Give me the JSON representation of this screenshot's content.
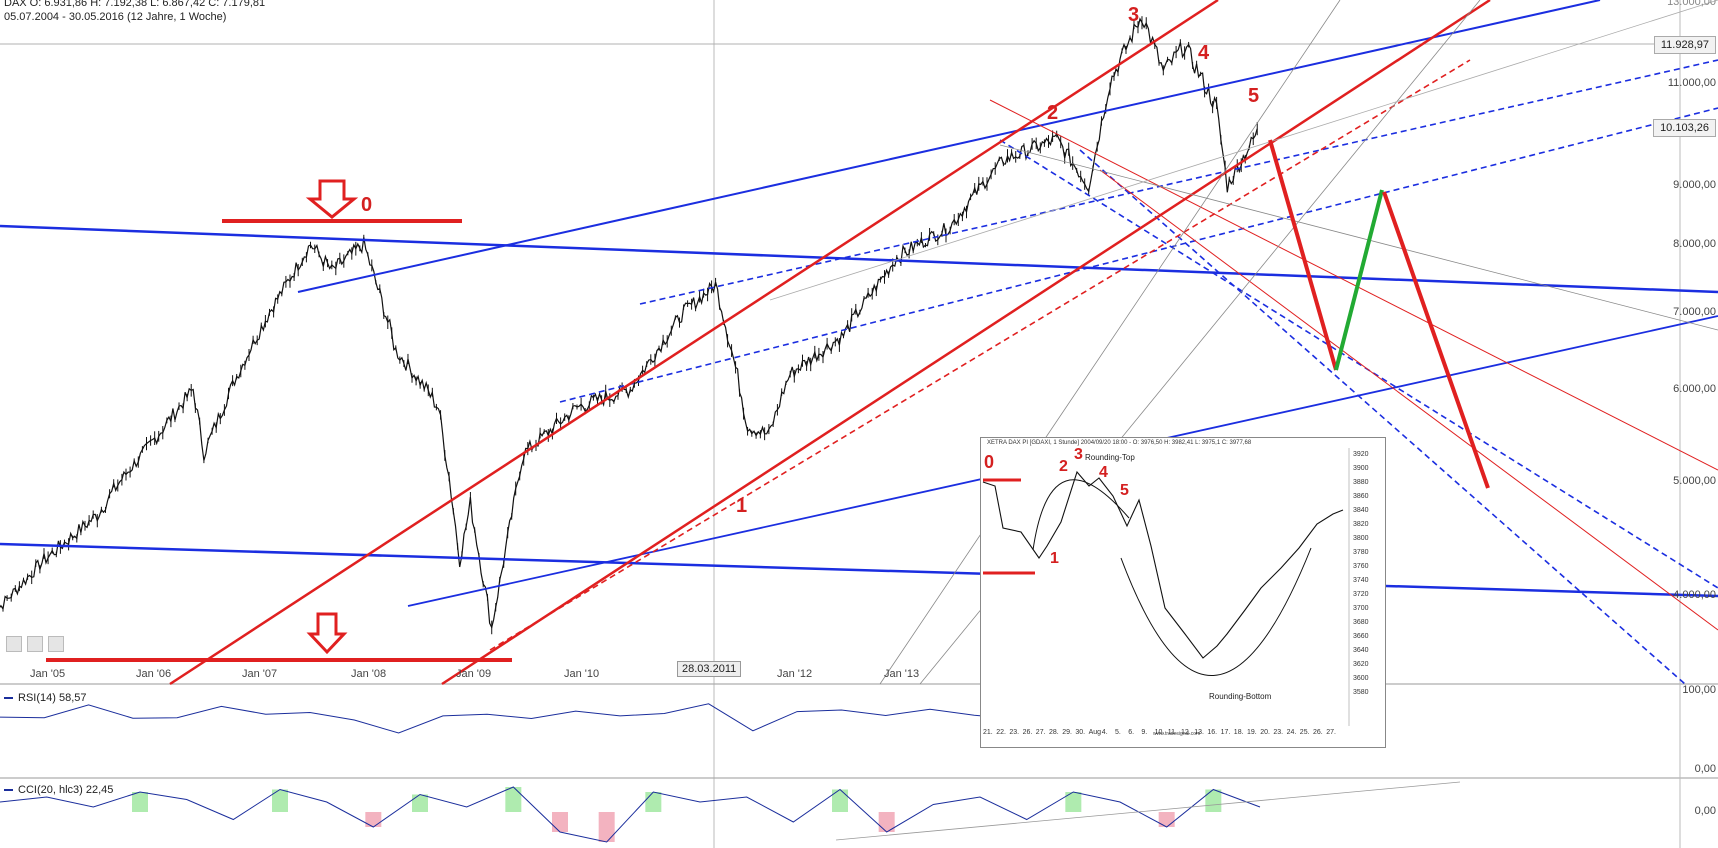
{
  "header": {
    "symbol_line": "DAX   O: 6.931,86  H: 7.192,38  L: 6.867,42  C: 7.179,81",
    "range_line": "05.07.2004 - 30.05.2016 (12 Jahre, 1 Woche)"
  },
  "price_axis": {
    "labels": [
      "11.000,00",
      "9.000,00",
      "8.000,00",
      "7.000,00",
      "6.000,00",
      "5.000,00",
      "4.000,00",
      "100,00"
    ],
    "current_price": "10.103,26",
    "crosshair_price": "11.928,97",
    "top_label": "13.000,00"
  },
  "time_axis": {
    "labels": [
      "Jan '05",
      "Jan '06",
      "Jan '07",
      "Jan '08",
      "Jan '09",
      "Jan '10",
      "Jan '12",
      "Jan '13"
    ],
    "crosshair_date": "28.03.2011"
  },
  "rsi_panel": {
    "title": "RSI(14)  58,57",
    "axis_labels": [
      "100,00",
      "0,00"
    ]
  },
  "cci_panel": {
    "title": "CCI(20, hlc3)  22,45",
    "axis_label": "0,00"
  },
  "annotations": {
    "wave_labels": [
      "0",
      "1",
      "2",
      "3",
      "4",
      "5"
    ]
  },
  "inset": {
    "header": "XETRA DAX PI   [GDAXI, 1 Stunde] 2004/09/20 18:00 - O: 3976,50 H: 3982,41 L: 3975,1 C: 3977,68",
    "rounding_top": "Rounding-Top",
    "rounding_bottom": "Rounding-Bottom",
    "wave_labels": [
      "0",
      "1",
      "2",
      "3",
      "4",
      "5"
    ],
    "y_labels": [
      "3920",
      "3900",
      "3880",
      "3860",
      "3840",
      "3820",
      "3800",
      "3780",
      "3760",
      "3740",
      "3720",
      "3700",
      "3680",
      "3660",
      "3640",
      "3620",
      "3600",
      "3580"
    ],
    "x_labels": [
      "21.",
      "22.",
      "23.",
      "26.",
      "27.",
      "28.",
      "29.",
      "30.",
      "Aug",
      "4.",
      "5.",
      "6.",
      "9.",
      "10.",
      "11.",
      "12.",
      "13.",
      "16.",
      "17.",
      "18.",
      "19.",
      "20.",
      "23.",
      "24.",
      "25.",
      "26.",
      "27."
    ],
    "footer": "www.tradesignal.com"
  },
  "colors": {
    "price": "#111111",
    "red": "#e02020",
    "blue": "#1b2ee0",
    "green": "#22aa33",
    "indicator": "#1b2e9c"
  },
  "chart_data": [
    {
      "type": "line",
      "title": "DAX",
      "x": [
        2004.5,
        2005.0,
        2005.5,
        2006.0,
        2006.4,
        2006.5,
        2007.0,
        2007.5,
        2007.7,
        2008.0,
        2008.3,
        2008.7,
        2008.9,
        2009.0,
        2009.2,
        2009.5,
        2010.0,
        2010.5,
        2011.0,
        2011.3,
        2011.6,
        2011.8,
        2012.0,
        2012.5,
        2013.0,
        2013.5,
        2014.0,
        2014.5,
        2014.8,
        2015.0,
        2015.3,
        2015.5,
        2015.7,
        2016.0,
        2016.1,
        2016.4
      ],
      "values": [
        3800,
        4300,
        4700,
        5400,
        6000,
        5300,
        6700,
        8000,
        7600,
        8000,
        6500,
        5800,
        4300,
        4800,
        3700,
        5300,
        5800,
        6000,
        7000,
        7400,
        5600,
        5500,
        6200,
        6700,
        7800,
        8300,
        9500,
        9900,
        9000,
        11000,
        12300,
        11200,
        11700,
        10500,
        9000,
        10100
      ],
      "ylim": [
        3500,
        13000
      ],
      "xlim": [
        2004.5,
        2016.5
      ]
    },
    {
      "type": "line",
      "title": "RSI(14)",
      "values": [
        55,
        60,
        63,
        58,
        56,
        62,
        66,
        58,
        48,
        42,
        50,
        60,
        58,
        55,
        62,
        60,
        66,
        45,
        58,
        62,
        64,
        58,
        60,
        56,
        63,
        62,
        55,
        60,
        59
      ]
    },
    {
      "type": "area",
      "title": "CCI(20, hlc3)",
      "values": [
        40,
        60,
        20,
        80,
        50,
        -30,
        90,
        40,
        -60,
        70,
        20,
        100,
        -80,
        -120,
        80,
        40,
        60,
        -40,
        90,
        -80,
        30,
        60,
        -30,
        80,
        40,
        -60,
        90,
        20
      ]
    }
  ]
}
